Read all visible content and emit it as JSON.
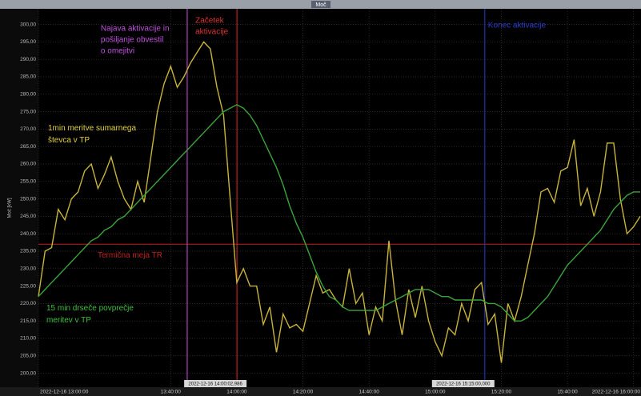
{
  "chart_data": {
    "type": "line",
    "title": "Moč",
    "y_label": "Moč [kW]",
    "ylim": [
      196,
      304.5
    ],
    "yticks": [
      {
        "value": 200,
        "label": "200,00"
      },
      {
        "value": 205,
        "label": "205,00"
      },
      {
        "value": 210,
        "label": "210,00"
      },
      {
        "value": 215,
        "label": "215,00"
      },
      {
        "value": 220,
        "label": "220,00"
      },
      {
        "value": 225,
        "label": "225,00"
      },
      {
        "value": 230,
        "label": "230,00"
      },
      {
        "value": 235,
        "label": "235,00"
      },
      {
        "value": 240,
        "label": "240,00"
      },
      {
        "value": 245,
        "label": "245,00"
      },
      {
        "value": 250,
        "label": "250,00"
      },
      {
        "value": 255,
        "label": "255,00"
      },
      {
        "value": 260,
        "label": "260,00"
      },
      {
        "value": 265,
        "label": "265,00"
      },
      {
        "value": 270,
        "label": "270,00"
      },
      {
        "value": 275,
        "label": "275,00"
      },
      {
        "value": 280,
        "label": "280,00"
      },
      {
        "value": 285,
        "label": "285,00"
      },
      {
        "value": 290,
        "label": "290,00"
      },
      {
        "value": 295,
        "label": "295,00"
      },
      {
        "value": 300,
        "label": "300,00"
      }
    ],
    "xlim": [
      "13:00:00",
      "16:02:00"
    ],
    "xticks": [
      {
        "value": "13:00:00",
        "label": "2022-12-16 13:00:00"
      },
      "13:40:00",
      "14:00:00",
      "14:20:00",
      "14:40:00",
      "15:00:00",
      "15:20:00",
      "15:40:00",
      {
        "value": "16:00:00",
        "label": "2022-12-16 16:00:00"
      }
    ],
    "grid": true,
    "x": [
      "13:00:00",
      "13:02:00",
      "13:04:00",
      "13:06:00",
      "13:08:00",
      "13:10:00",
      "13:12:00",
      "13:14:00",
      "13:16:00",
      "13:18:00",
      "13:20:00",
      "13:22:00",
      "13:24:00",
      "13:26:00",
      "13:28:00",
      "13:30:00",
      "13:32:00",
      "13:34:00",
      "13:36:00",
      "13:38:00",
      "13:40:00",
      "13:42:00",
      "13:44:00",
      "13:46:00",
      "13:48:00",
      "13:50:00",
      "13:52:00",
      "13:54:00",
      "13:56:00",
      "13:58:00",
      "14:00:00",
      "14:02:00",
      "14:04:00",
      "14:06:00",
      "14:08:00",
      "14:10:00",
      "14:12:00",
      "14:14:00",
      "14:16:00",
      "14:18:00",
      "14:20:00",
      "14:22:00",
      "14:24:00",
      "14:26:00",
      "14:28:00",
      "14:30:00",
      "14:32:00",
      "14:34:00",
      "14:36:00",
      "14:38:00",
      "14:40:00",
      "14:42:00",
      "14:44:00",
      "14:46:00",
      "14:48:00",
      "14:50:00",
      "14:52:00",
      "14:54:00",
      "14:56:00",
      "14:58:00",
      "15:00:00",
      "15:02:00",
      "15:04:00",
      "15:06:00",
      "15:08:00",
      "15:10:00",
      "15:12:00",
      "15:14:00",
      "15:16:00",
      "15:18:00",
      "15:20:00",
      "15:22:00",
      "15:24:00",
      "15:26:00",
      "15:28:00",
      "15:30:00",
      "15:32:00",
      "15:34:00",
      "15:36:00",
      "15:38:00",
      "15:40:00",
      "15:42:00",
      "15:44:00",
      "15:46:00",
      "15:48:00",
      "15:50:00",
      "15:52:00",
      "15:54:00",
      "15:56:00",
      "15:58:00",
      "16:00:00",
      "16:02:00"
    ],
    "series": [
      {
        "name": "1min meritve sumarnega števca v TP",
        "color": "#c9b43a",
        "values": [
          222,
          235,
          236,
          247,
          244,
          250,
          252,
          258,
          260,
          253,
          257,
          262,
          255,
          250,
          247,
          255,
          249,
          262,
          275,
          283,
          288,
          282,
          285,
          289,
          292,
          295,
          293,
          282,
          274,
          250,
          226,
          230,
          225,
          225,
          214,
          219,
          206,
          217,
          213,
          214,
          212,
          220,
          228,
          223,
          224,
          221,
          219,
          230,
          220,
          223,
          211,
          219,
          215,
          238,
          221,
          211,
          224,
          216,
          225,
          215,
          209,
          205,
          213,
          211,
          220,
          215,
          224,
          226,
          214,
          217,
          203,
          220,
          215,
          222,
          231,
          240,
          252,
          253,
          249,
          258,
          259,
          267,
          248,
          253,
          245,
          252,
          266,
          266,
          250,
          240,
          242,
          245
        ]
      },
      {
        "name": "15 min drseče povprečje meritev v TP",
        "color": "#3aa53a",
        "values": [
          222,
          224,
          226,
          228,
          230,
          232,
          234,
          236,
          238,
          239,
          241,
          242,
          244,
          245,
          247,
          249,
          251,
          253,
          255,
          257,
          259,
          261,
          263,
          265,
          267,
          269,
          271,
          273,
          275,
          276,
          277,
          276,
          274,
          271,
          267,
          263,
          259,
          254,
          248,
          243,
          239,
          234,
          229,
          225,
          222,
          221,
          219,
          218,
          218,
          218,
          218,
          218,
          219,
          220,
          221,
          222,
          223,
          224,
          224,
          224,
          223,
          222,
          222,
          221,
          221,
          221,
          221,
          221,
          220,
          220,
          219,
          217,
          215,
          215,
          216,
          218,
          220,
          222,
          225,
          228,
          231,
          233,
          235,
          237,
          239,
          241,
          244,
          247,
          249,
          251,
          252,
          252
        ]
      }
    ],
    "hlines": [
      {
        "y": 237,
        "label": "Termična meja TR",
        "color": "#c0201e"
      }
    ],
    "vlines": [
      {
        "x": "13:45:00",
        "color": "#b040c0",
        "lines": [
          "Najava aktivacije in",
          "pošiljanje obvestil",
          "o omejitvi"
        ]
      },
      {
        "x": "14:00:02,986",
        "color": "#c0201e",
        "lines": [
          "Začetek",
          "aktivacije"
        ],
        "cursor_label": "2022-12-16 14:00:02,986"
      },
      {
        "x": "15:15:00",
        "color": "#2030b0",
        "lines": [
          "Konec aktivacije"
        ],
        "cursor_label": "2022-12-16 15:15:00,000"
      }
    ]
  }
}
